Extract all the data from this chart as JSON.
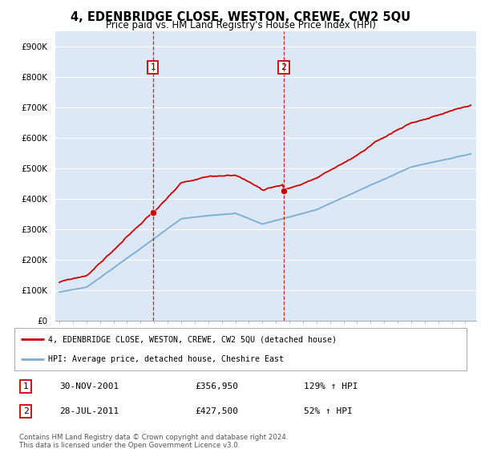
{
  "title": "4, EDENBRIDGE CLOSE, WESTON, CREWE, CW2 5QU",
  "subtitle": "Price paid vs. HM Land Registry's House Price Index (HPI)",
  "ylim": [
    0,
    950000
  ],
  "yticks": [
    0,
    100000,
    200000,
    300000,
    400000,
    500000,
    600000,
    700000,
    800000,
    900000
  ],
  "ytick_labels": [
    "£0",
    "£100K",
    "£200K",
    "£300K",
    "£400K",
    "£500K",
    "£600K",
    "£700K",
    "£800K",
    "£900K"
  ],
  "hpi_color": "#7aadd4",
  "price_color": "#cc0000",
  "sale1_price": 356950,
  "sale2_price": 427500,
  "sale1_year": 2001.92,
  "sale2_year": 2011.58,
  "sale1_date": "30-NOV-2001",
  "sale2_date": "28-JUL-2011",
  "sale1_hpi": "129% ↑ HPI",
  "sale2_hpi": "52% ↑ HPI",
  "legend_label1": "4, EDENBRIDGE CLOSE, WESTON, CREWE, CW2 5QU (detached house)",
  "legend_label2": "HPI: Average price, detached house, Cheshire East",
  "footer": "Contains HM Land Registry data © Crown copyright and database right 2024.\nThis data is licensed under the Open Government Licence v3.0.",
  "background_color": "#ffffff",
  "plot_bg_color": "#dce8f5",
  "grid_color": "#ffffff",
  "vline_color": "#cc0000",
  "xlim_start": 1994.7,
  "xlim_end": 2025.8
}
